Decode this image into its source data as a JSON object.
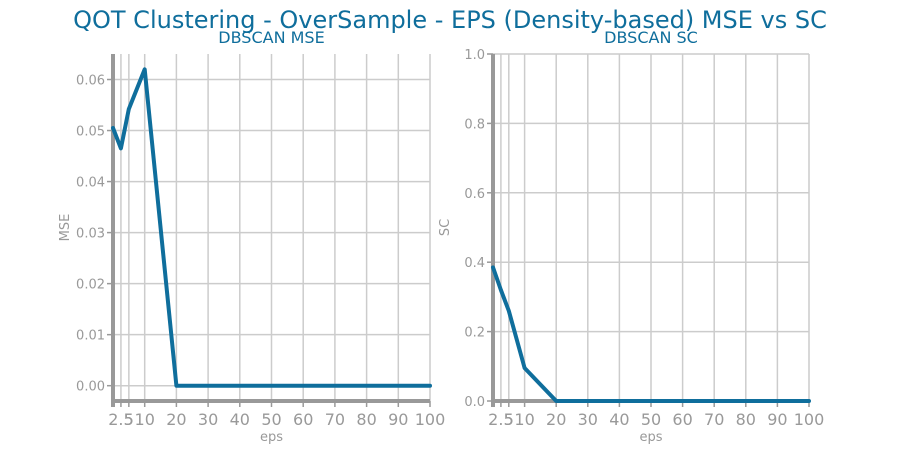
{
  "figure": {
    "title": "QOT Clustering - OverSample - EPS (Density-based) MSE vs SC",
    "line_color": "#0f6e9c",
    "title_color": "#0f6e9c",
    "axis_color": "#999999",
    "grid_color": "#cccccc",
    "tick_color": "#999999"
  },
  "chart_data": [
    {
      "type": "line",
      "title": "DBSCAN MSE",
      "xlabel": "eps",
      "ylabel": "MSE",
      "xlim": [
        0,
        100
      ],
      "ylim": [
        -0.003,
        0.065
      ],
      "grid": true,
      "x_ticks": [
        2.5,
        5,
        10,
        20,
        30,
        40,
        50,
        60,
        70,
        80,
        90,
        100
      ],
      "x_tick_labels": [
        "2.5",
        "5",
        "10",
        "20",
        "30",
        "40",
        "50",
        "60",
        "70",
        "80",
        "90",
        "100"
      ],
      "y_ticks": [
        0.0,
        0.01,
        0.02,
        0.03,
        0.04,
        0.05,
        0.06
      ],
      "y_tick_labels": [
        "0.00",
        "0.01",
        "0.02",
        "0.03",
        "0.04",
        "0.05",
        "0.06"
      ],
      "series": [
        {
          "x": [
            0,
            2.5,
            5,
            10,
            20,
            30,
            40,
            50,
            60,
            70,
            80,
            90,
            100
          ],
          "values": [
            0.0505,
            0.0465,
            0.0542,
            0.062,
            0.0,
            0.0,
            0.0,
            0.0,
            0.0,
            0.0,
            0.0,
            0.0,
            0.0
          ]
        }
      ]
    },
    {
      "type": "line",
      "title": "DBSCAN SC",
      "xlabel": "eps",
      "ylabel": "SC",
      "xlim": [
        0,
        100
      ],
      "ylim": [
        0,
        1
      ],
      "grid": true,
      "x_ticks": [
        2.5,
        5,
        10,
        20,
        30,
        40,
        50,
        60,
        70,
        80,
        90,
        100
      ],
      "x_tick_labels": [
        "2.5",
        "5",
        "10",
        "20",
        "30",
        "40",
        "50",
        "60",
        "70",
        "80",
        "90",
        "100"
      ],
      "y_ticks": [
        0.0,
        0.2,
        0.4,
        0.6,
        0.8,
        1.0
      ],
      "y_tick_labels": [
        "0.0",
        "0.2",
        "0.4",
        "0.6",
        "0.8",
        "1.0"
      ],
      "series": [
        {
          "x": [
            0,
            2.5,
            5,
            10,
            20,
            30,
            40,
            50,
            60,
            70,
            80,
            90,
            100
          ],
          "values": [
            0.385,
            0.32,
            0.26,
            0.095,
            0.0,
            0.0,
            0.0,
            0.0,
            0.0,
            0.0,
            0.0,
            0.0,
            0.0
          ]
        }
      ]
    }
  ]
}
